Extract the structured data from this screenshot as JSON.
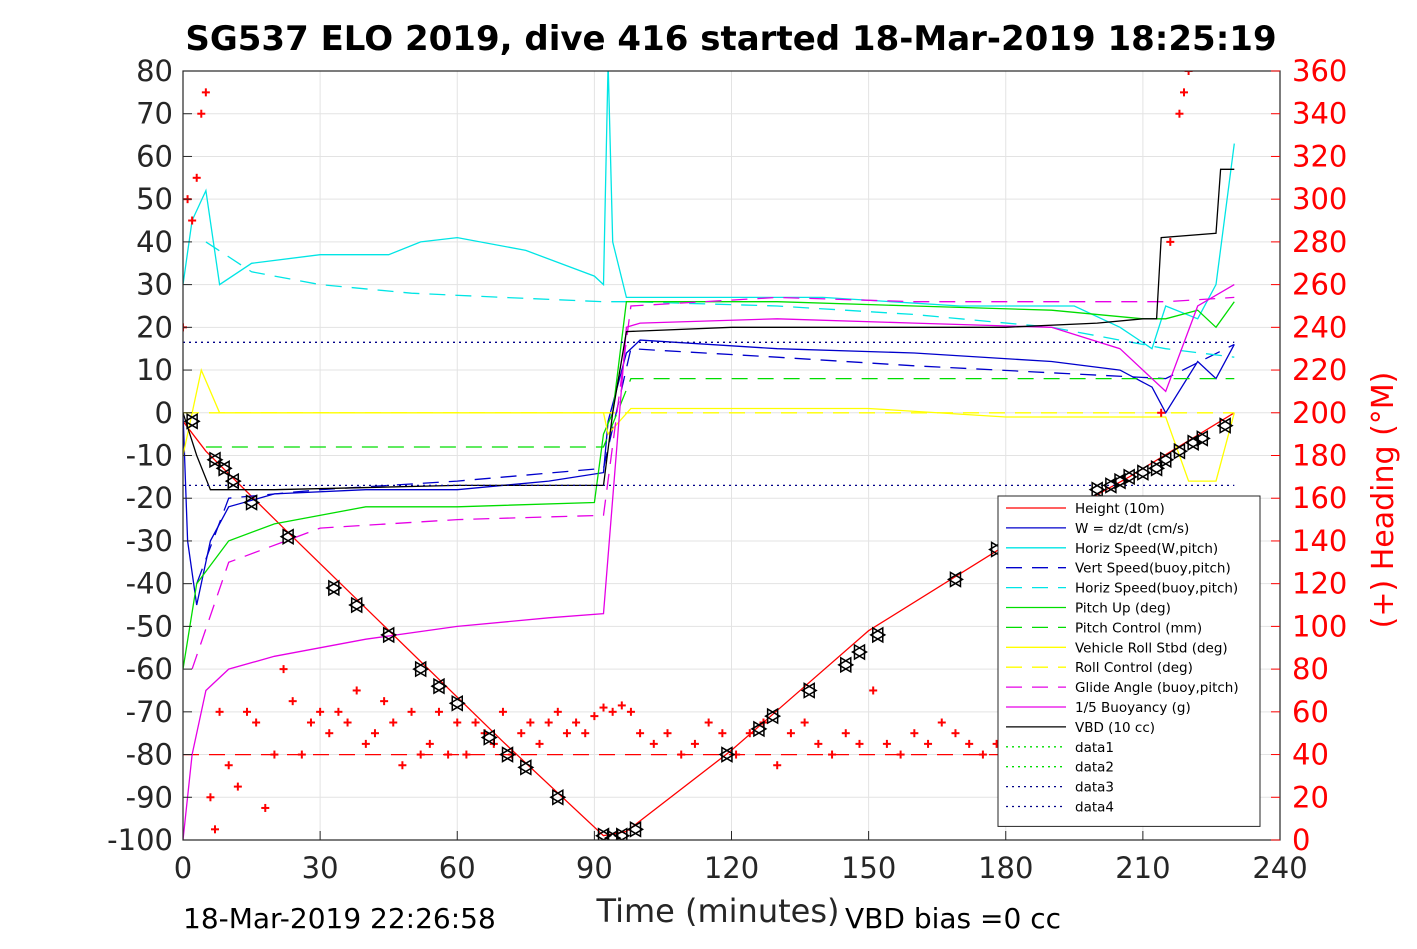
{
  "chart_data": {
    "type": "line",
    "title": "SG537 ELO 2019, dive 416 started 18-Mar-2019 18:25:19",
    "xlabel": "Time (minutes)",
    "ylabel_right": "(+) Heading (°M)",
    "xlim": [
      0,
      240
    ],
    "ylim": [
      -100,
      80
    ],
    "y2lim": [
      0,
      360
    ],
    "xticks": [
      0,
      30,
      60,
      90,
      120,
      150,
      180,
      210,
      240
    ],
    "yticks": [
      -100,
      -90,
      -80,
      -70,
      -60,
      -50,
      -40,
      -30,
      -20,
      -10,
      0,
      10,
      20,
      30,
      40,
      50,
      60,
      70,
      80
    ],
    "y2ticks": [
      0,
      20,
      40,
      60,
      80,
      100,
      120,
      140,
      160,
      180,
      200,
      220,
      240,
      260,
      280,
      300,
      320,
      340,
      360
    ],
    "grid": true,
    "legend_position": "bottom-right",
    "footer_left": "18-Mar-2019 22:26:58",
    "footer_right": "VBD bias =0 cc",
    "colors": {
      "height": "#ff0000",
      "w": "#0000cc",
      "horiz_w": "#00e5e5",
      "vert_buoy": "#0000cc",
      "horiz_buoy": "#00e5e5",
      "pitch_up": "#00dd00",
      "pitch_ctl": "#00dd00",
      "roll": "#ffff00",
      "roll_ctl": "#ffff00",
      "glide": "#e600e6",
      "buoy": "#e600e6",
      "vbd": "#000000",
      "heading": "#ff0000",
      "data": "#000088"
    },
    "series": [
      {
        "name": "Height (10m)",
        "style": "solid",
        "color": "#ff0000",
        "x": [
          0,
          5,
          22,
          46,
          70,
          92,
          97,
          120,
          150,
          180,
          207,
          230
        ],
        "y": [
          -2,
          -9,
          -27,
          -52,
          -77,
          -99,
          -98,
          -79,
          -51,
          -31,
          -15,
          0
        ]
      },
      {
        "name": "W = dz/dt (cm/s)",
        "style": "solid",
        "color": "#0000cc",
        "x": [
          0,
          1,
          3,
          6,
          10,
          20,
          40,
          60,
          80,
          92,
          93,
          97,
          100,
          130,
          160,
          190,
          205,
          212,
          215,
          222,
          226,
          230
        ],
        "y": [
          0,
          -30,
          -45,
          -30,
          -22,
          -19,
          -18,
          -18,
          -16,
          -14,
          -2,
          14,
          17,
          15,
          14,
          12,
          10,
          6,
          0,
          12,
          8,
          16
        ]
      },
      {
        "name": "Horiz Speed(W,pitch)",
        "style": "solid",
        "color": "#00e5e5",
        "x": [
          0,
          2,
          5,
          8,
          15,
          30,
          45,
          52,
          60,
          75,
          90,
          92,
          93,
          94,
          97,
          110,
          140,
          170,
          195,
          205,
          212,
          215,
          222,
          226,
          230
        ],
        "y": [
          30,
          45,
          52,
          30,
          35,
          37,
          37,
          40,
          41,
          38,
          32,
          30,
          82,
          40,
          27,
          27,
          27,
          25,
          25,
          20,
          15,
          25,
          22,
          30,
          63
        ]
      },
      {
        "name": "Vert Speed(buoy,pitch)",
        "style": "dashed",
        "color": "#0000cc",
        "x": [
          3,
          10,
          30,
          60,
          92,
          98,
          130,
          160,
          215,
          230
        ],
        "y": [
          -40,
          -20,
          -18,
          -16,
          -13,
          15,
          13,
          11,
          8,
          16
        ]
      },
      {
        "name": "Horiz Speed(buoy,pitch)",
        "style": "dashed",
        "color": "#00e5e5",
        "x": [
          5,
          15,
          30,
          50,
          70,
          92,
          98,
          130,
          160,
          190,
          215,
          230
        ],
        "y": [
          40,
          33,
          30,
          28,
          27,
          26,
          26,
          25,
          23,
          20,
          15,
          13
        ]
      },
      {
        "name": "Pitch Up (deg)",
        "style": "solid",
        "color": "#00dd00",
        "x": [
          0,
          3,
          10,
          20,
          40,
          60,
          90,
          92,
          94,
          97,
          100,
          130,
          160,
          190,
          210,
          215,
          222,
          226,
          230
        ],
        "y": [
          -60,
          -40,
          -30,
          -26,
          -22,
          -22,
          -21,
          -5,
          0,
          26,
          26,
          26,
          25,
          24,
          22,
          22,
          24,
          20,
          26
        ]
      },
      {
        "name": "Pitch Control (mm)",
        "style": "dashed",
        "color": "#00dd00",
        "x": [
          5,
          10,
          40,
          70,
          92,
          98,
          130,
          160,
          190,
          215,
          230
        ],
        "y": [
          -8,
          -8,
          -8,
          -8,
          -8,
          8,
          8,
          8,
          8,
          8,
          8
        ]
      },
      {
        "name": "Vehicle Roll Stbd (deg)",
        "style": "solid",
        "color": "#ffff00",
        "x": [
          0,
          4,
          8,
          15,
          30,
          50,
          70,
          90,
          92,
          93,
          98,
          120,
          150,
          180,
          200,
          215,
          220,
          226,
          230
        ],
        "y": [
          -10,
          10,
          0,
          0,
          0,
          0,
          0,
          0,
          0,
          -5,
          1,
          1,
          1,
          -1,
          -1,
          -1,
          -16,
          -16,
          0
        ]
      },
      {
        "name": "Roll Control (deg)",
        "style": "dashed",
        "color": "#ffff00",
        "x": [
          0,
          230
        ],
        "y": [
          0,
          0
        ]
      },
      {
        "name": "Glide Angle (buoy,pitch)",
        "style": "dashed",
        "color": "#e600e6",
        "x": [
          2,
          10,
          30,
          60,
          92,
          98,
          130,
          160,
          190,
          215,
          230
        ],
        "y": [
          -60,
          -35,
          -27,
          -25,
          -24,
          25,
          27,
          26,
          26,
          26,
          27
        ]
      },
      {
        "name": "1/5 Buoyancy (g)",
        "style": "solid",
        "color": "#e600e6",
        "x": [
          0,
          2,
          5,
          10,
          20,
          40,
          60,
          80,
          92,
          97,
          100,
          130,
          160,
          190,
          205,
          212,
          215,
          222,
          230
        ],
        "y": [
          -100,
          -80,
          -65,
          -60,
          -57,
          -53,
          -50,
          -48,
          -47,
          20,
          21,
          22,
          21,
          20,
          15,
          8,
          5,
          25,
          30
        ]
      },
      {
        "name": "VBD (10 cc)",
        "style": "solid",
        "color": "#000000",
        "x": [
          0,
          3,
          6,
          20,
          60,
          92,
          94,
          97,
          120,
          150,
          180,
          200,
          210,
          213,
          214,
          226,
          227,
          230
        ],
        "y": [
          0,
          -10,
          -18,
          -18,
          -17,
          -17,
          0,
          19,
          20,
          20,
          20,
          21,
          22,
          22,
          41,
          42,
          57,
          57
        ]
      },
      {
        "name": "data1",
        "style": "dotted",
        "color": "#00dd00",
        "x": [],
        "y": []
      },
      {
        "name": "data2",
        "style": "dotted",
        "color": "#00dd00",
        "x": [],
        "y": []
      },
      {
        "name": "data3",
        "style": "dotted",
        "color": "#000088",
        "x": [
          0,
          230
        ],
        "y": [
          16.5,
          16.5
        ]
      },
      {
        "name": "data4",
        "style": "dotted",
        "color": "#000088",
        "x": [
          0,
          230
        ],
        "y": [
          -17,
          -17
        ]
      }
    ],
    "extra_lines": [
      {
        "style": "dashed",
        "color": "#ff0000",
        "x": [
          0,
          230
        ],
        "y": [
          -80,
          -80
        ]
      }
    ],
    "heading": {
      "color": "#ff0000",
      "x": [
        0,
        1,
        2,
        3,
        4,
        5,
        6,
        7,
        8,
        10,
        12,
        14,
        16,
        18,
        20,
        22,
        24,
        26,
        28,
        30,
        32,
        34,
        36,
        38,
        40,
        42,
        44,
        46,
        48,
        50,
        52,
        54,
        56,
        58,
        60,
        62,
        64,
        66,
        68,
        70,
        72,
        74,
        76,
        78,
        80,
        82,
        84,
        86,
        88,
        90,
        92,
        94,
        96,
        98,
        100,
        103,
        106,
        109,
        112,
        115,
        118,
        121,
        124,
        127,
        130,
        133,
        136,
        139,
        142,
        145,
        148,
        151,
        154,
        157,
        160,
        163,
        166,
        169,
        172,
        175,
        178,
        182,
        186,
        190,
        194,
        198,
        202,
        206,
        210,
        212,
        214,
        216,
        218,
        219,
        220
      ],
      "y": [
        240,
        300,
        290,
        310,
        340,
        350,
        20,
        5,
        60,
        35,
        25,
        60,
        55,
        15,
        40,
        80,
        65,
        40,
        55,
        60,
        50,
        60,
        55,
        70,
        45,
        50,
        65,
        55,
        35,
        60,
        40,
        45,
        60,
        40,
        55,
        40,
        55,
        50,
        45,
        60,
        40,
        50,
        55,
        45,
        55,
        60,
        50,
        55,
        50,
        58,
        62,
        60,
        63,
        60,
        50,
        45,
        50,
        40,
        45,
        55,
        50,
        40,
        50,
        55,
        35,
        50,
        55,
        45,
        40,
        50,
        45,
        70,
        45,
        40,
        50,
        45,
        55,
        50,
        45,
        40,
        45,
        60,
        50,
        55,
        45,
        55,
        40,
        50,
        60,
        100,
        200,
        280,
        340,
        350,
        360
      ]
    },
    "markers": {
      "color": "#000000",
      "x": [
        2,
        7,
        9,
        11,
        15,
        23,
        33,
        38,
        45,
        52,
        56,
        60,
        67,
        71,
        75,
        82,
        92,
        94,
        96,
        99,
        119,
        126,
        129,
        137,
        145,
        148,
        152,
        169,
        178,
        200,
        203,
        205,
        207,
        210,
        213,
        215,
        218,
        221,
        223,
        228
      ],
      "y": [
        -2,
        -11,
        -13,
        -16,
        -21,
        -29,
        -41,
        -45,
        -52,
        -60,
        -64,
        -68,
        -76,
        -80,
        -83,
        -90,
        -99,
        -99.5,
        -99,
        -97.5,
        -80,
        -74,
        -71,
        -65,
        -59,
        -56,
        -52,
        -39,
        -32,
        -18,
        -17,
        -16,
        -15,
        -14,
        -13,
        -11,
        -9,
        -7,
        -6,
        -3
      ]
    }
  }
}
